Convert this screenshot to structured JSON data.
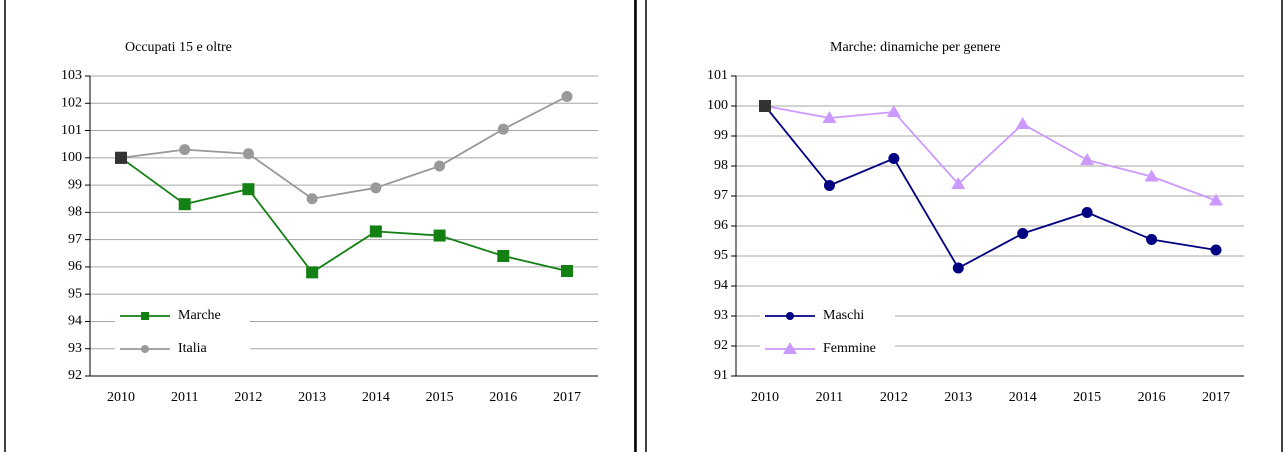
{
  "chart_data": [
    {
      "type": "line",
      "title": "Occupati  15 e oltre",
      "categories": [
        "2010",
        "2011",
        "2012",
        "2013",
        "2014",
        "2015",
        "2016",
        "2017"
      ],
      "series": [
        {
          "name": "Marche",
          "color": "#138013",
          "marker": "square",
          "values": [
            100,
            98.3,
            98.85,
            95.8,
            97.3,
            97.15,
            96.4,
            95.85
          ]
        },
        {
          "name": "Italia",
          "color": "#999999",
          "marker": "circle",
          "values": [
            100,
            100.3,
            100.15,
            98.5,
            98.9,
            99.7,
            101.05,
            102.25
          ]
        }
      ],
      "first_point_color": "#333333",
      "ylim": [
        92,
        103
      ],
      "yticks": [
        92,
        93,
        94,
        95,
        96,
        97,
        98,
        99,
        100,
        101,
        102,
        103
      ],
      "grid": true,
      "legend": "lower left"
    },
    {
      "type": "line",
      "title": "Marche:  dinamiche per genere",
      "categories": [
        "2010",
        "2011",
        "2012",
        "2013",
        "2014",
        "2015",
        "2016",
        "2017"
      ],
      "series": [
        {
          "name": "Maschi",
          "color": "#000080",
          "marker": "circle",
          "values": [
            100,
            97.35,
            98.25,
            94.6,
            95.75,
            96.45,
            95.55,
            95.2
          ]
        },
        {
          "name": "Femmine",
          "color": "#cc99ff",
          "marker": "triangle",
          "values": [
            100,
            99.6,
            99.8,
            97.4,
            99.4,
            98.2,
            97.65,
            96.85
          ]
        }
      ],
      "first_point_color": "#333333",
      "ylim": [
        91,
        101
      ],
      "yticks": [
        91,
        92,
        93,
        94,
        95,
        96,
        97,
        98,
        99,
        100,
        101
      ],
      "grid": true,
      "legend": "lower left"
    }
  ]
}
